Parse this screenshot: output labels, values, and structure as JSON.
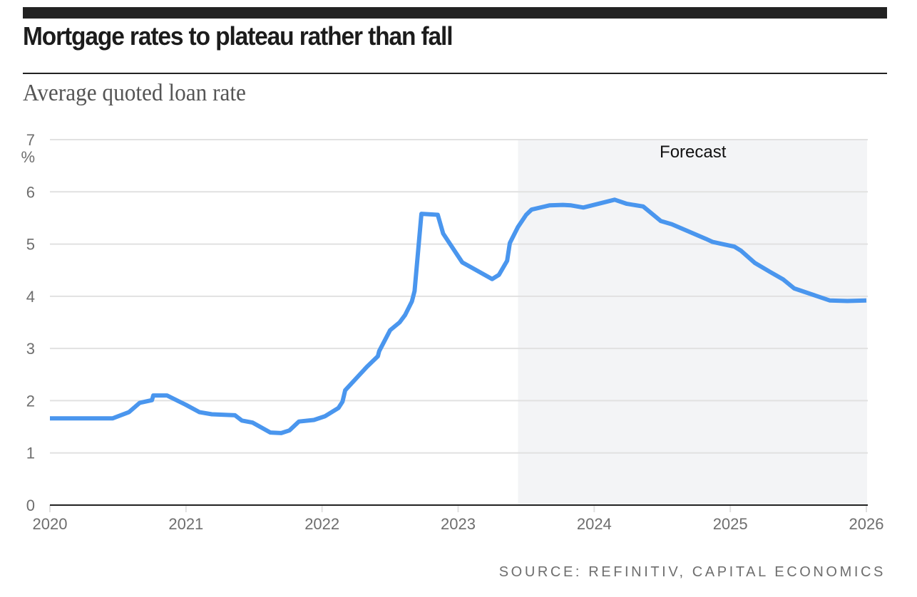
{
  "header": {
    "title": "Mortgage rates to plateau rather than fall",
    "subtitle": "Average quoted loan rate"
  },
  "footer": {
    "source": "SOURCE: REFINITIV, CAPITAL ECONOMICS"
  },
  "colors": {
    "line": "#4a96ee",
    "forecast_shade": "#f3f4f6",
    "grid": "#e1e1e1",
    "axis": "#222222",
    "text_muted": "#6e6e6e"
  },
  "chart_data": {
    "type": "line",
    "title": "Mortgage rates to plateau rather than fall",
    "subtitle": "Average quoted loan rate",
    "xlabel": "",
    "ylabel": "%",
    "xlim": [
      2020,
      2026
    ],
    "ylim": [
      0,
      7
    ],
    "grid": true,
    "x_ticks": [
      2020,
      2021,
      2022,
      2023,
      2024,
      2025,
      2026
    ],
    "x_tick_labels": [
      "2020",
      "2021",
      "2022",
      "2023",
      "2024",
      "2025",
      "2026"
    ],
    "y_ticks": [
      0,
      1,
      2,
      3,
      4,
      5,
      6,
      7
    ],
    "y_tick_labels": [
      "0",
      "1",
      "2",
      "3",
      "4",
      "5",
      "6",
      "7"
    ],
    "y_unit_label": "%",
    "forecast": {
      "label": "Forecast",
      "start": 2023.44,
      "end": 2026
    },
    "series": [
      {
        "name": "Average quoted loan rate",
        "x": [
          2020.0,
          2020.46,
          2020.58,
          2020.66,
          2020.75,
          2020.76,
          2020.86,
          2021.0,
          2021.1,
          2021.19,
          2021.36,
          2021.41,
          2021.49,
          2021.62,
          2021.7,
          2021.76,
          2021.83,
          2021.94,
          2022.02,
          2022.12,
          2022.15,
          2022.17,
          2022.33,
          2022.41,
          2022.42,
          2022.5,
          2022.57,
          2022.61,
          2022.66,
          2022.68,
          2022.73,
          2022.85,
          2022.89,
          2023.03,
          2023.25,
          2023.3,
          2023.36,
          2023.38,
          2023.44,
          2023.5,
          2023.54,
          2023.67,
          2023.77,
          2023.83,
          2023.92,
          2024.15,
          2024.24,
          2024.36,
          2024.49,
          2024.57,
          2024.82,
          2024.87,
          2025.03,
          2025.08,
          2025.18,
          2025.29,
          2025.39,
          2025.47,
          2025.73,
          2025.86,
          2026.0
        ],
        "values": [
          1.66,
          1.66,
          1.78,
          1.96,
          2.01,
          2.1,
          2.1,
          1.92,
          1.78,
          1.74,
          1.72,
          1.62,
          1.58,
          1.39,
          1.38,
          1.43,
          1.6,
          1.63,
          1.7,
          1.86,
          1.98,
          2.2,
          2.65,
          2.85,
          2.95,
          3.35,
          3.5,
          3.64,
          3.9,
          4.1,
          5.58,
          5.56,
          5.2,
          4.65,
          4.33,
          4.41,
          4.68,
          5.02,
          5.33,
          5.56,
          5.66,
          5.74,
          5.75,
          5.74,
          5.7,
          5.85,
          5.77,
          5.72,
          5.44,
          5.38,
          5.1,
          5.04,
          4.95,
          4.87,
          4.64,
          4.47,
          4.32,
          4.15,
          3.92,
          3.91,
          3.92
        ]
      }
    ]
  }
}
